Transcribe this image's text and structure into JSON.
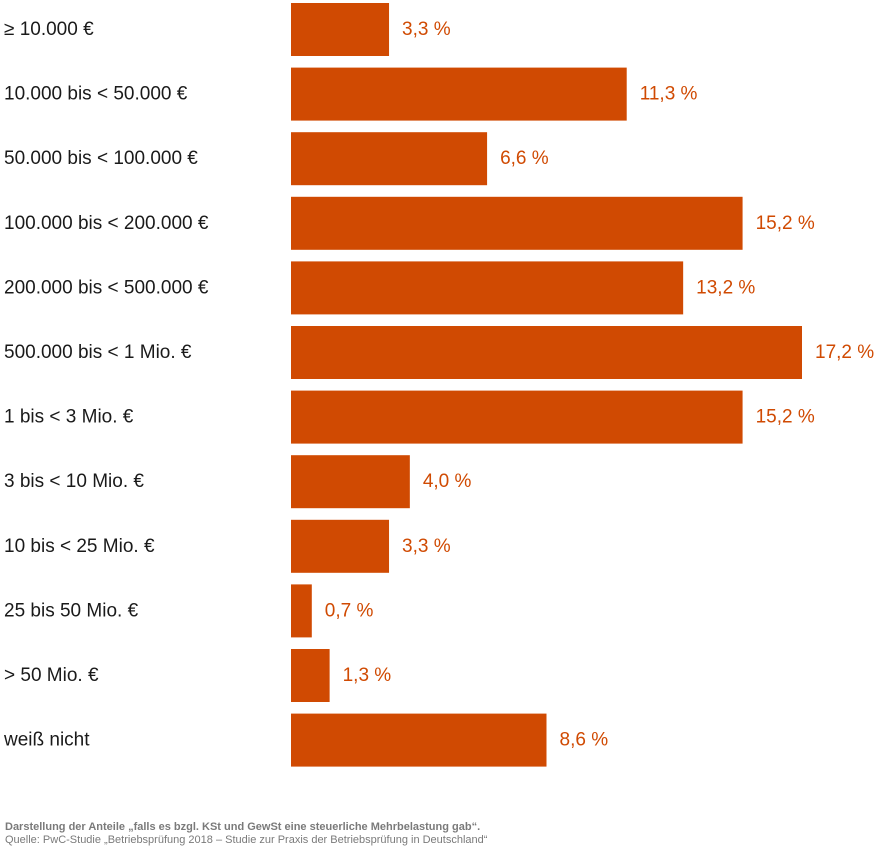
{
  "chart_data": {
    "type": "bar",
    "orientation": "horizontal",
    "categories": [
      "≥ 10.000 €",
      "10.000 bis < 50.000 €",
      "50.000 bis < 100.000 €",
      "100.000 bis < 200.000 €",
      "200.000 bis < 500.000 €",
      "500.000 bis < 1 Mio. €",
      "1 bis < 3 Mio. €",
      "3 bis < 10 Mio. €",
      "10 bis < 25 Mio. €",
      "25 bis 50 Mio. €",
      "> 50 Mio. €",
      "weiß nicht"
    ],
    "values": [
      3.3,
      11.3,
      6.6,
      15.2,
      13.2,
      17.2,
      15.2,
      4.0,
      3.3,
      0.7,
      1.3,
      8.6
    ],
    "value_labels": [
      "3,3 %",
      "11,3 %",
      "6,6 %",
      "15,2 %",
      "13,2 %",
      "17,2 %",
      "15,2 %",
      "4,0 %",
      "3,3 %",
      "0,7 %",
      "1,3 %",
      "8,6 %"
    ],
    "unit": "%",
    "grid": false,
    "legend": false,
    "bar_color": "#d04a02",
    "label_color": "#d04a02"
  },
  "footer": {
    "note": "Darstellung der Anteile „falls es bzgl. KSt und GewSt eine steuerliche Mehrbelastung gab“.",
    "source": "Quelle: PwC-Studie „Betriebsprüfung 2018 – Studie zur Praxis der Betriebsprüfung in Deutschland“"
  }
}
